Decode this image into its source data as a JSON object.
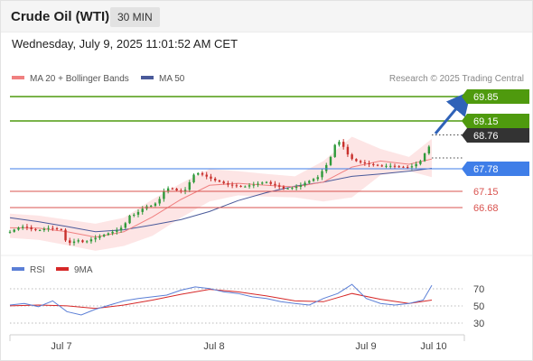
{
  "header": {
    "title": "Crude Oil (WTI)",
    "timeframe": "30 MIN",
    "datetime": "Wednesday, July 9, 2025 11:01:52 AM CET"
  },
  "legend": {
    "ma20_label": "MA 20 + Bollinger Bands",
    "ma50_label": "MA 50",
    "credit": "Research © 2025 Trading Central",
    "rsi_label": "RSI",
    "rsi_ma_label": "9MA"
  },
  "colors": {
    "green_level": "#4f9a0e",
    "red_level": "#d9534f",
    "blue_level": "#3f7ee8",
    "price_badge": "#333333",
    "ma20": "#f08080",
    "ma50": "#4a5a9a",
    "bands_fill": "#fde0e0",
    "candle_up": "#2f9a3a",
    "candle_down": "#c8302c",
    "arrow": "#2f62b8",
    "rsi": "#5b7fd6",
    "rsi_ma": "#d62828"
  },
  "chart_data": [
    {
      "type": "candlestick",
      "timeframe": "30 MIN",
      "x_tick_labels": [
        "Jul 7",
        "Jul 8",
        "Jul 9",
        "Jul 10"
      ],
      "ylim": [
        66.1,
        70.05
      ],
      "grid": false,
      "levels": [
        {
          "label": "69.85",
          "value": 69.85,
          "kind": "resistance"
        },
        {
          "label": "69.15",
          "value": 69.15,
          "kind": "resistance"
        },
        {
          "label": "68.76",
          "value": 68.76,
          "kind": "last_price"
        },
        {
          "label": "67.78",
          "value": 67.78,
          "kind": "pivot"
        },
        {
          "label": "67.15",
          "value": 67.15,
          "kind": "support"
        },
        {
          "label": "66.68",
          "value": 66.68,
          "kind": "support"
        }
      ],
      "price_points": [
        [
          0,
          66.55
        ],
        [
          4,
          66.62
        ],
        [
          8,
          66.68
        ],
        [
          12,
          66.66
        ],
        [
          16,
          66.6
        ],
        [
          20,
          66.58
        ],
        [
          24,
          66.62
        ],
        [
          28,
          66.65
        ],
        [
          32,
          66.62
        ],
        [
          36,
          66.6
        ],
        [
          40,
          66.25
        ],
        [
          44,
          66.3
        ],
        [
          48,
          66.34
        ],
        [
          52,
          66.28
        ],
        [
          56,
          66.35
        ],
        [
          60,
          66.4
        ],
        [
          64,
          66.45
        ],
        [
          68,
          66.5
        ],
        [
          72,
          66.55
        ],
        [
          76,
          66.6
        ],
        [
          80,
          66.7
        ],
        [
          84,
          66.95
        ],
        [
          88,
          66.98
        ],
        [
          92,
          67.1
        ],
        [
          96,
          67.18
        ],
        [
          100,
          67.2
        ],
        [
          104,
          67.3
        ],
        [
          108,
          67.55
        ],
        [
          112,
          67.65
        ],
        [
          116,
          67.58
        ],
        [
          120,
          67.55
        ],
        [
          124,
          67.6
        ],
        [
          128,
          67.95
        ],
        [
          132,
          68.0
        ],
        [
          136,
          67.95
        ],
        [
          140,
          67.88
        ],
        [
          144,
          67.82
        ],
        [
          148,
          67.78
        ],
        [
          152,
          67.72
        ],
        [
          156,
          67.7
        ],
        [
          160,
          67.68
        ],
        [
          164,
          67.66
        ],
        [
          168,
          67.7
        ],
        [
          172,
          67.72
        ],
        [
          176,
          67.76
        ],
        [
          180,
          67.78
        ],
        [
          184,
          67.72
        ],
        [
          188,
          67.68
        ],
        [
          192,
          67.62
        ],
        [
          196,
          67.62
        ],
        [
          200,
          67.65
        ],
        [
          204,
          67.7
        ],
        [
          208,
          67.78
        ],
        [
          212,
          67.84
        ],
        [
          216,
          67.9
        ],
        [
          220,
          68.1
        ],
        [
          224,
          68.3
        ],
        [
          228,
          68.7
        ],
        [
          232,
          68.8
        ],
        [
          236,
          68.5
        ],
        [
          240,
          68.35
        ],
        [
          244,
          68.28
        ],
        [
          248,
          68.25
        ],
        [
          252,
          68.22
        ],
        [
          256,
          68.2
        ],
        [
          260,
          68.18
        ],
        [
          264,
          68.18
        ],
        [
          268,
          68.18
        ],
        [
          272,
          68.16
        ],
        [
          276,
          68.15
        ],
        [
          280,
          68.14
        ],
        [
          284,
          68.2
        ],
        [
          288,
          68.3
        ],
        [
          292,
          68.55
        ],
        [
          296,
          68.76
        ]
      ],
      "ma20_points": [
        [
          0,
          66.65
        ],
        [
          20,
          66.64
        ],
        [
          40,
          66.55
        ],
        [
          60,
          66.42
        ],
        [
          80,
          66.55
        ],
        [
          100,
          66.92
        ],
        [
          120,
          67.35
        ],
        [
          140,
          67.7
        ],
        [
          160,
          67.75
        ],
        [
          180,
          67.7
        ],
        [
          200,
          67.66
        ],
        [
          220,
          67.78
        ],
        [
          240,
          68.15
        ],
        [
          260,
          68.3
        ],
        [
          280,
          68.22
        ],
        [
          296,
          68.35
        ]
      ],
      "ma50_points": [
        [
          0,
          66.9
        ],
        [
          20,
          66.8
        ],
        [
          40,
          66.68
        ],
        [
          60,
          66.55
        ],
        [
          80,
          66.6
        ],
        [
          100,
          66.72
        ],
        [
          120,
          66.85
        ],
        [
          140,
          67.05
        ],
        [
          160,
          67.32
        ],
        [
          180,
          67.52
        ],
        [
          200,
          67.68
        ],
        [
          220,
          67.78
        ],
        [
          240,
          67.92
        ],
        [
          260,
          67.98
        ],
        [
          280,
          68.05
        ],
        [
          296,
          68.12
        ]
      ],
      "bands_upper": [
        [
          0,
          67.0
        ],
        [
          20,
          66.95
        ],
        [
          40,
          66.85
        ],
        [
          60,
          66.75
        ],
        [
          80,
          66.9
        ],
        [
          100,
          67.35
        ],
        [
          120,
          67.75
        ],
        [
          140,
          68.1
        ],
        [
          160,
          68.05
        ],
        [
          180,
          67.98
        ],
        [
          200,
          67.92
        ],
        [
          220,
          68.3
        ],
        [
          240,
          68.9
        ],
        [
          260,
          68.6
        ],
        [
          280,
          68.4
        ],
        [
          296,
          68.85
        ]
      ],
      "bands_lower": [
        [
          0,
          66.4
        ],
        [
          20,
          66.35
        ],
        [
          40,
          66.22
        ],
        [
          60,
          66.08
        ],
        [
          80,
          66.2
        ],
        [
          100,
          66.45
        ],
        [
          120,
          66.9
        ],
        [
          140,
          67.3
        ],
        [
          160,
          67.45
        ],
        [
          180,
          67.42
        ],
        [
          200,
          67.4
        ],
        [
          220,
          67.3
        ],
        [
          240,
          67.4
        ],
        [
          260,
          67.95
        ],
        [
          280,
          68.05
        ],
        [
          296,
          67.9
        ]
      ],
      "forecast_arrow": {
        "from_value": 68.8,
        "to_value": 69.85
      }
    },
    {
      "type": "line",
      "ylim": [
        15,
        85
      ],
      "y_ticks": [
        30,
        50,
        70
      ],
      "series": [
        {
          "name": "RSI",
          "points": [
            [
              0,
              50
            ],
            [
              10,
              52
            ],
            [
              20,
              48
            ],
            [
              30,
              55
            ],
            [
              40,
              42
            ],
            [
              50,
              38
            ],
            [
              60,
              45
            ],
            [
              70,
              50
            ],
            [
              80,
              55
            ],
            [
              90,
              58
            ],
            [
              100,
              60
            ],
            [
              110,
              62
            ],
            [
              120,
              68
            ],
            [
              130,
              72
            ],
            [
              140,
              70
            ],
            [
              150,
              66
            ],
            [
              160,
              64
            ],
            [
              170,
              60
            ],
            [
              180,
              58
            ],
            [
              190,
              54
            ],
            [
              200,
              52
            ],
            [
              210,
              50
            ],
            [
              220,
              58
            ],
            [
              230,
              64
            ],
            [
              240,
              75
            ],
            [
              250,
              58
            ],
            [
              260,
              52
            ],
            [
              270,
              50
            ],
            [
              280,
              52
            ],
            [
              290,
              56
            ],
            [
              296,
              74
            ]
          ]
        },
        {
          "name": "9MA",
          "points": [
            [
              0,
              49
            ],
            [
              20,
              50
            ],
            [
              40,
              49
            ],
            [
              60,
              46
            ],
            [
              80,
              50
            ],
            [
              100,
              56
            ],
            [
              120,
              63
            ],
            [
              140,
              69
            ],
            [
              160,
              66
            ],
            [
              180,
              61
            ],
            [
              200,
              55
            ],
            [
              220,
              54
            ],
            [
              240,
              64
            ],
            [
              260,
              57
            ],
            [
              280,
              52
            ],
            [
              296,
              56
            ]
          ]
        }
      ]
    }
  ]
}
